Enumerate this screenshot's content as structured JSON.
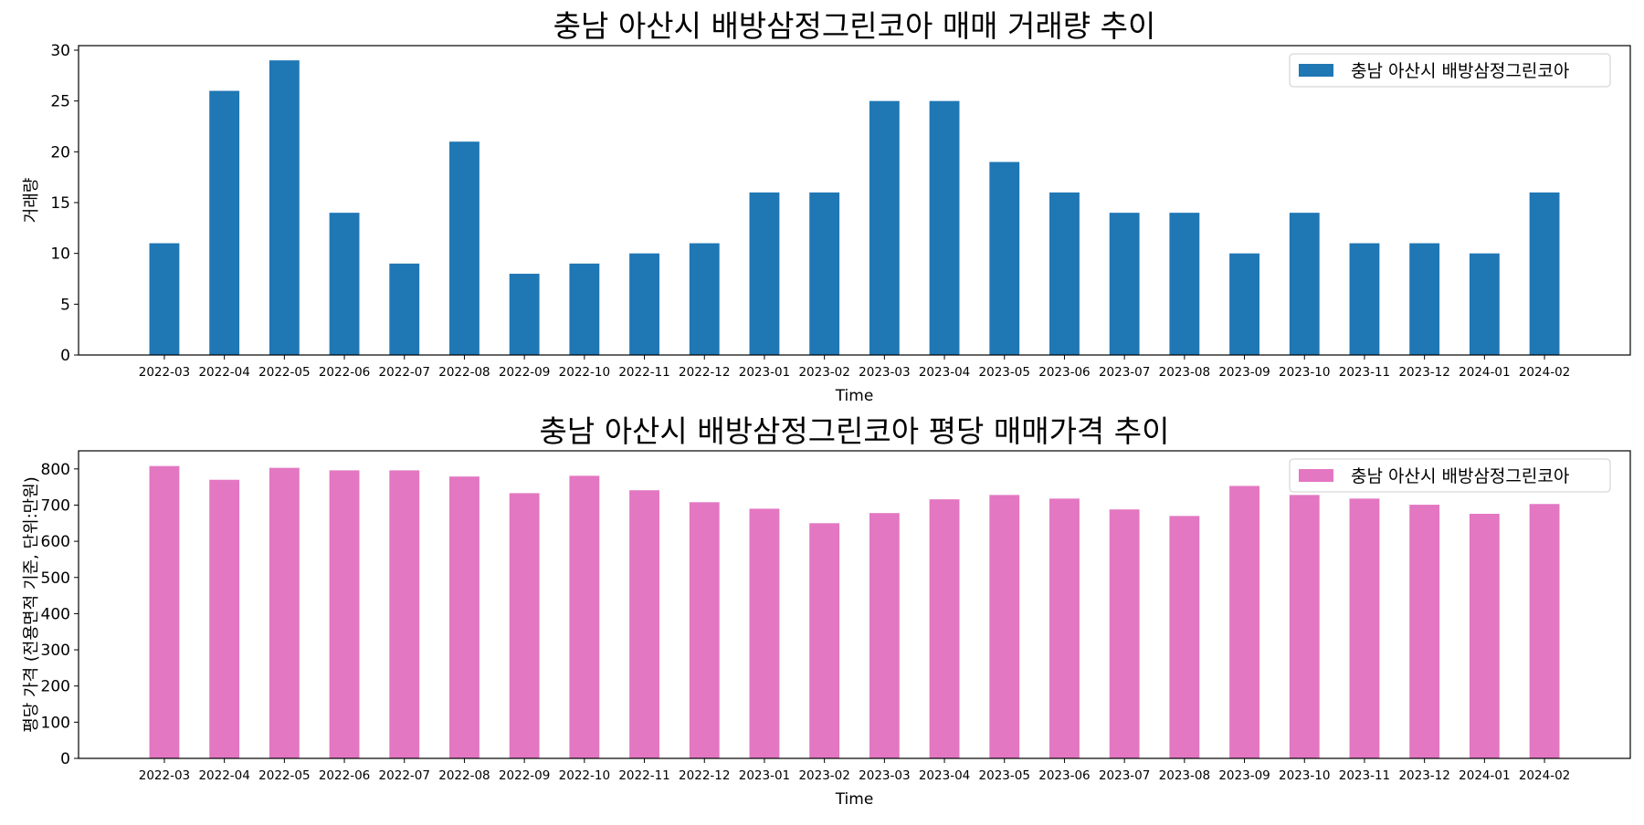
{
  "chart_data": [
    {
      "type": "bar",
      "title": "충남 아산시 배방삼정그린코아 매매 거래량 추이",
      "xlabel": "Time",
      "ylabel": "거래량",
      "ylim": [
        0,
        30.45
      ],
      "yticks": [
        0,
        5,
        10,
        15,
        20,
        25,
        30
      ],
      "legend_position": "top-right",
      "color": "#1f77b4",
      "categories": [
        "2022-03",
        "2022-04",
        "2022-05",
        "2022-06",
        "2022-07",
        "2022-08",
        "2022-09",
        "2022-10",
        "2022-11",
        "2022-12",
        "2023-01",
        "2023-02",
        "2023-03",
        "2023-04",
        "2023-05",
        "2023-06",
        "2023-07",
        "2023-08",
        "2023-09",
        "2023-10",
        "2023-11",
        "2023-12",
        "2024-01",
        "2024-02"
      ],
      "series": [
        {
          "name": "충남 아산시 배방삼정그린코아",
          "values": [
            11,
            26,
            29,
            14,
            9,
            21,
            8,
            9,
            10,
            11,
            16,
            16,
            25,
            25,
            19,
            16,
            14,
            14,
            10,
            14,
            11,
            11,
            10,
            16
          ]
        }
      ]
    },
    {
      "type": "bar",
      "title": "충남 아산시 배방삼정그린코아 평당 매매가격 추이",
      "xlabel": "Time",
      "ylabel": "평당 가격 (전용면적 기준, 단위:만원)",
      "ylim": [
        0,
        850
      ],
      "yticks": [
        0,
        100,
        200,
        300,
        400,
        500,
        600,
        700,
        800
      ],
      "legend_position": "top-right",
      "color": "#e377c2",
      "categories": [
        "2022-03",
        "2022-04",
        "2022-05",
        "2022-06",
        "2022-07",
        "2022-08",
        "2022-09",
        "2022-10",
        "2022-11",
        "2022-12",
        "2023-01",
        "2023-02",
        "2023-03",
        "2023-04",
        "2023-05",
        "2023-06",
        "2023-07",
        "2023-08",
        "2023-09",
        "2023-10",
        "2023-11",
        "2023-12",
        "2024-01",
        "2024-02"
      ],
      "series": [
        {
          "name": "충남 아산시 배방삼정그린코아",
          "values": [
            808,
            770,
            803,
            796,
            796,
            779,
            733,
            781,
            741,
            708,
            690,
            650,
            678,
            716,
            728,
            718,
            688,
            670,
            753,
            728,
            718,
            701,
            676,
            703
          ]
        }
      ]
    }
  ]
}
